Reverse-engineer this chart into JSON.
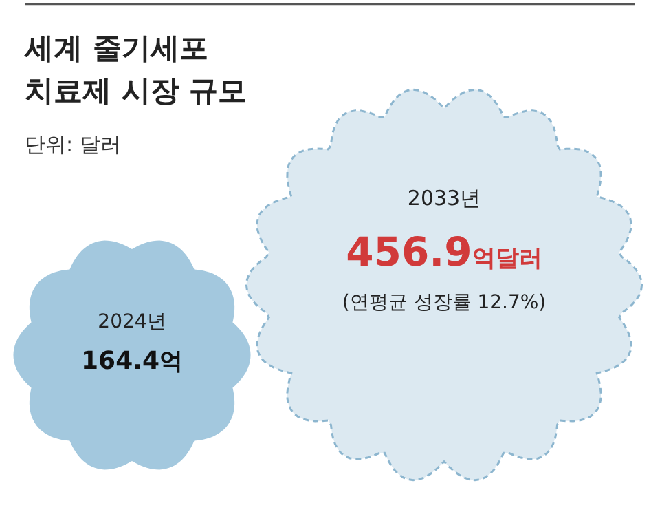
{
  "chart_data": {
    "type": "other",
    "title": "세계 줄기세포 치료제 시장 규모",
    "subtitle": "단위: 달러",
    "categories": [
      "2024년",
      "2033년"
    ],
    "values": [
      164.4,
      456.9
    ],
    "value_labels": [
      "164.4억",
      "456.9억달러"
    ],
    "colors": [
      "#a3c8de",
      "#dce9f1"
    ],
    "annotations": [
      "(연평균 성장률 12.7%)"
    ]
  }
}
